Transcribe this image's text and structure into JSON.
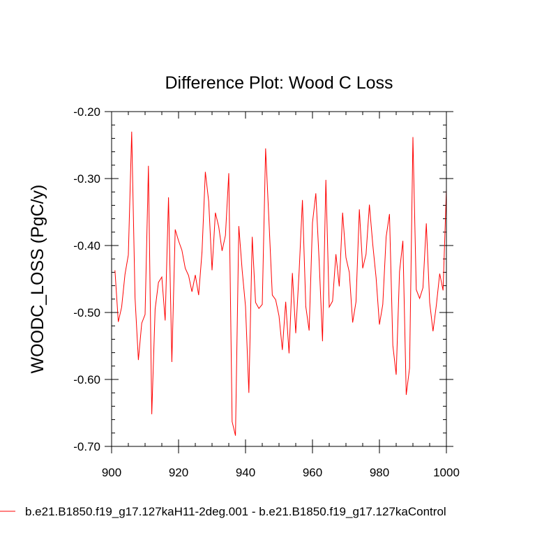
{
  "chart_data": {
    "type": "line",
    "title": "Difference Plot: Wood C Loss",
    "xlabel": "",
    "ylabel": "WOODC_LOSS  (PgC/y)",
    "xlim": [
      900,
      1000
    ],
    "ylim": [
      -0.7,
      -0.2
    ],
    "x_ticks": [
      "900",
      "920",
      "940",
      "960",
      "980",
      "1000"
    ],
    "y_ticks": [
      "-0.20",
      "-0.30",
      "-0.40",
      "-0.50",
      "-0.60",
      "-0.70"
    ],
    "grid": false,
    "legend_position": "bottom",
    "series": [
      {
        "name": "b.e21.B1850.f19_g17.127kaH11-2deg.001 - b.e21.B1850.f19_g17.127kaControl",
        "color": "#ff0000",
        "x": [
          901,
          902,
          903,
          904,
          905,
          906,
          907,
          908,
          909,
          910,
          911,
          912,
          913,
          914,
          915,
          916,
          917,
          918,
          919,
          920,
          921,
          922,
          923,
          924,
          925,
          926,
          927,
          928,
          929,
          930,
          931,
          932,
          933,
          934,
          935,
          936,
          937,
          938,
          939,
          940,
          941,
          942,
          943,
          944,
          945,
          946,
          947,
          948,
          949,
          950,
          951,
          952,
          953,
          954,
          955,
          956,
          957,
          958,
          959,
          960,
          961,
          962,
          963,
          964,
          965,
          966,
          967,
          968,
          969,
          970,
          971,
          972,
          973,
          974,
          975,
          976,
          977,
          978,
          979,
          980,
          981,
          982,
          983,
          984,
          985,
          986,
          987,
          988,
          989,
          990,
          991,
          992,
          993,
          994,
          995,
          996,
          997,
          998,
          999,
          1000
        ],
        "values": [
          -0.437,
          -0.514,
          -0.492,
          -0.443,
          -0.414,
          -0.23,
          -0.478,
          -0.571,
          -0.516,
          -0.503,
          -0.281,
          -0.652,
          -0.495,
          -0.455,
          -0.447,
          -0.512,
          -0.328,
          -0.574,
          -0.376,
          -0.393,
          -0.407,
          -0.434,
          -0.445,
          -0.469,
          -0.444,
          -0.474,
          -0.41,
          -0.29,
          -0.334,
          -0.437,
          -0.351,
          -0.372,
          -0.408,
          -0.385,
          -0.292,
          -0.663,
          -0.684,
          -0.371,
          -0.437,
          -0.491,
          -0.62,
          -0.387,
          -0.485,
          -0.494,
          -0.488,
          -0.255,
          -0.363,
          -0.474,
          -0.481,
          -0.505,
          -0.556,
          -0.484,
          -0.561,
          -0.441,
          -0.531,
          -0.44,
          -0.332,
          -0.491,
          -0.527,
          -0.366,
          -0.322,
          -0.424,
          -0.543,
          -0.302,
          -0.492,
          -0.483,
          -0.413,
          -0.461,
          -0.351,
          -0.418,
          -0.44,
          -0.515,
          -0.484,
          -0.346,
          -0.434,
          -0.413,
          -0.339,
          -0.398,
          -0.448,
          -0.518,
          -0.488,
          -0.387,
          -0.353,
          -0.549,
          -0.593,
          -0.439,
          -0.393,
          -0.623,
          -0.583,
          -0.238,
          -0.466,
          -0.479,
          -0.463,
          -0.367,
          -0.485,
          -0.528,
          -0.489,
          -0.442,
          -0.467,
          -0.316
        ]
      }
    ]
  }
}
